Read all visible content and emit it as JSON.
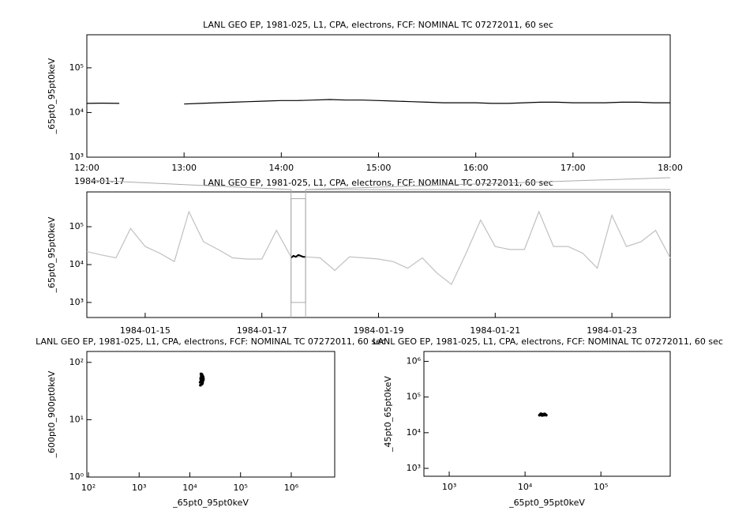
{
  "chart_data": [
    {
      "type": "line",
      "title": "LANL GEO EP, 1981-025, L1, CPA, electrons, FCF: NOMINAL TC 07272011, 60 sec",
      "ylabel": "_65pt0_95pt0keV",
      "annotation": "1984-01-17",
      "xlim": [
        "12:00",
        "18:00"
      ],
      "xticks": [
        "12:00",
        "13:00",
        "14:00",
        "15:00",
        "16:00",
        "17:00",
        "18:00"
      ],
      "yscale": "log",
      "ylim": [
        1000,
        550000
      ],
      "yticks": [
        {
          "value": 1000,
          "label": "10³"
        },
        {
          "value": 10000,
          "label": "10⁴"
        },
        {
          "value": 100000,
          "label": "10⁵"
        }
      ],
      "series": [
        {
          "color": "#000000",
          "x": [
            "12:00",
            "12:10",
            "12:20",
            "12:30",
            "12:40",
            "12:50",
            "13:00",
            "13:10",
            "13:20",
            "13:30",
            "13:40",
            "13:50",
            "14:00",
            "14:10",
            "14:20",
            "14:30",
            "14:40",
            "14:50",
            "15:00",
            "15:10",
            "15:20",
            "15:30",
            "15:40",
            "15:50",
            "16:00",
            "16:10",
            "16:20",
            "16:30",
            "16:40",
            "16:50",
            "17:00",
            "17:10",
            "17:20",
            "17:30",
            "17:40",
            "17:50",
            "18:00"
          ],
          "values": [
            16000,
            16200,
            16000,
            null,
            null,
            null,
            15500,
            16000,
            16500,
            17000,
            17500,
            18000,
            18500,
            18500,
            19000,
            19500,
            19000,
            19000,
            18500,
            18000,
            17500,
            17000,
            16500,
            16500,
            16500,
            16000,
            16000,
            16500,
            17000,
            17000,
            16500,
            16500,
            16500,
            17000,
            17000,
            16500,
            16500
          ]
        }
      ]
    },
    {
      "type": "line",
      "title": "LANL GEO EP, 1981-025, L1, CPA, electrons, FCF: NOMINAL TC 07272011, 60 sec",
      "ylabel": "_65pt0_95pt0keV",
      "xlim": [
        "1984-01-14",
        "1984-01-24"
      ],
      "xticks": [
        "1984-01-15",
        "1984-01-17",
        "1984-01-19",
        "1984-01-21",
        "1984-01-23"
      ],
      "yscale": "log",
      "ylim": [
        400,
        830000
      ],
      "yticks": [
        {
          "value": 1000,
          "label": "10³"
        },
        {
          "value": 10000,
          "label": "10⁴"
        },
        {
          "value": 100000,
          "label": "10⁵"
        }
      ],
      "series": [
        {
          "color": "#c0c0c0",
          "x": [
            "1984-01-14T00:00",
            "1984-01-14T06:00",
            "1984-01-14T12:00",
            "1984-01-14T18:00",
            "1984-01-15T00:00",
            "1984-01-15T06:00",
            "1984-01-15T12:00",
            "1984-01-15T18:00",
            "1984-01-16T00:00",
            "1984-01-16T06:00",
            "1984-01-16T12:00",
            "1984-01-16T18:00",
            "1984-01-17T00:00",
            "1984-01-17T06:00",
            "1984-01-17T12:00",
            "1984-01-17T18:00",
            "1984-01-18T00:00",
            "1984-01-18T06:00",
            "1984-01-18T12:00",
            "1984-01-18T18:00",
            "1984-01-19T00:00",
            "1984-01-19T06:00",
            "1984-01-19T12:00",
            "1984-01-19T18:00",
            "1984-01-20T00:00",
            "1984-01-20T06:00",
            "1984-01-20T12:00",
            "1984-01-20T18:00",
            "1984-01-21T00:00",
            "1984-01-21T06:00",
            "1984-01-21T12:00",
            "1984-01-21T18:00",
            "1984-01-22T00:00",
            "1984-01-22T06:00",
            "1984-01-22T12:00",
            "1984-01-22T18:00",
            "1984-01-23T00:00",
            "1984-01-23T06:00",
            "1984-01-23T12:00",
            "1984-01-23T18:00",
            "1984-01-24T00:00"
          ],
          "values": [
            22000,
            18000,
            15000,
            90000,
            30000,
            20000,
            12000,
            250000,
            40000,
            25000,
            15000,
            14000,
            14000,
            80000,
            16000,
            16000,
            15000,
            7000,
            16000,
            15000,
            14000,
            12000,
            8000,
            15000,
            6000,
            3000,
            20000,
            150000,
            30000,
            25000,
            25000,
            250000,
            30000,
            30000,
            20000,
            8000,
            200000,
            30000,
            40000,
            80000,
            15000
          ]
        },
        {
          "color": "#000000",
          "x": [
            "1984-01-17T12:00",
            "1984-01-17T13:00",
            "1984-01-17T14:00",
            "1984-01-17T15:00",
            "1984-01-17T16:00",
            "1984-01-17T17:00",
            "1984-01-17T18:00"
          ],
          "values": [
            15000,
            17000,
            16000,
            18000,
            17000,
            16000,
            16000
          ]
        }
      ]
    },
    {
      "type": "scatter",
      "title": "LANL GEO EP, 1981-025, L1, CPA, electrons, FCF: NOMINAL TC 07272011, 60 sec",
      "xlabel": "_65pt0_95pt0keV",
      "ylabel": "_600pt0_900pt0keV",
      "xscale": "log",
      "yscale": "log",
      "xlim": [
        93,
        7200000
      ],
      "ylim": [
        1,
        155
      ],
      "xticks": [
        {
          "value": 100,
          "label": "10²"
        },
        {
          "value": 1000,
          "label": "10³"
        },
        {
          "value": 10000,
          "label": "10⁴"
        },
        {
          "value": 100000,
          "label": "10⁵"
        },
        {
          "value": 1000000,
          "label": "10⁶"
        }
      ],
      "yticks": [
        {
          "value": 1,
          "label": "10⁰"
        },
        {
          "value": 10,
          "label": "10¹"
        },
        {
          "value": 100,
          "label": "10²"
        }
      ],
      "series": [
        {
          "color": "#000000",
          "x": [
            16000,
            16500,
            17000,
            17500,
            18000,
            18500,
            16200,
            16800,
            17200,
            17800,
            18200,
            16400,
            17000,
            17600,
            18400,
            16600,
            17400,
            18000,
            16900,
            17300
          ],
          "values": [
            45,
            50,
            55,
            60,
            48,
            52,
            40,
            58,
            62,
            44,
            56,
            53,
            47,
            51,
            49,
            63,
            42,
            57,
            54,
            46
          ]
        }
      ]
    },
    {
      "type": "scatter",
      "title": "LANL GEO EP, 1981-025, L1, CPA, electrons, FCF: NOMINAL TC 07272011, 60 sec",
      "xlabel": "_65pt0_95pt0keV",
      "ylabel": "_45pt0_65pt0keV",
      "xscale": "log",
      "yscale": "log",
      "xlim": [
        464,
        820000
      ],
      "ylim": [
        600,
        1900000
      ],
      "xticks": [
        {
          "value": 1000,
          "label": "10³"
        },
        {
          "value": 10000,
          "label": "10⁴"
        },
        {
          "value": 100000,
          "label": "10⁵"
        }
      ],
      "yticks": [
        {
          "value": 1000,
          "label": "10³"
        },
        {
          "value": 10000,
          "label": "10⁴"
        },
        {
          "value": 100000,
          "label": "10⁵"
        },
        {
          "value": 1000000,
          "label": "10⁶"
        }
      ],
      "series": [
        {
          "color": "#000000",
          "x": [
            15500,
            16000,
            16500,
            17000,
            17500,
            18000,
            18500,
            19000,
            16200,
            16800,
            17300,
            17800,
            18300,
            15800,
            17100
          ],
          "values": [
            31000,
            32000,
            33000,
            31500,
            32500,
            33500,
            32000,
            31000,
            34000,
            30500,
            32800,
            31200,
            33200,
            32200,
            31800
          ]
        }
      ]
    }
  ]
}
